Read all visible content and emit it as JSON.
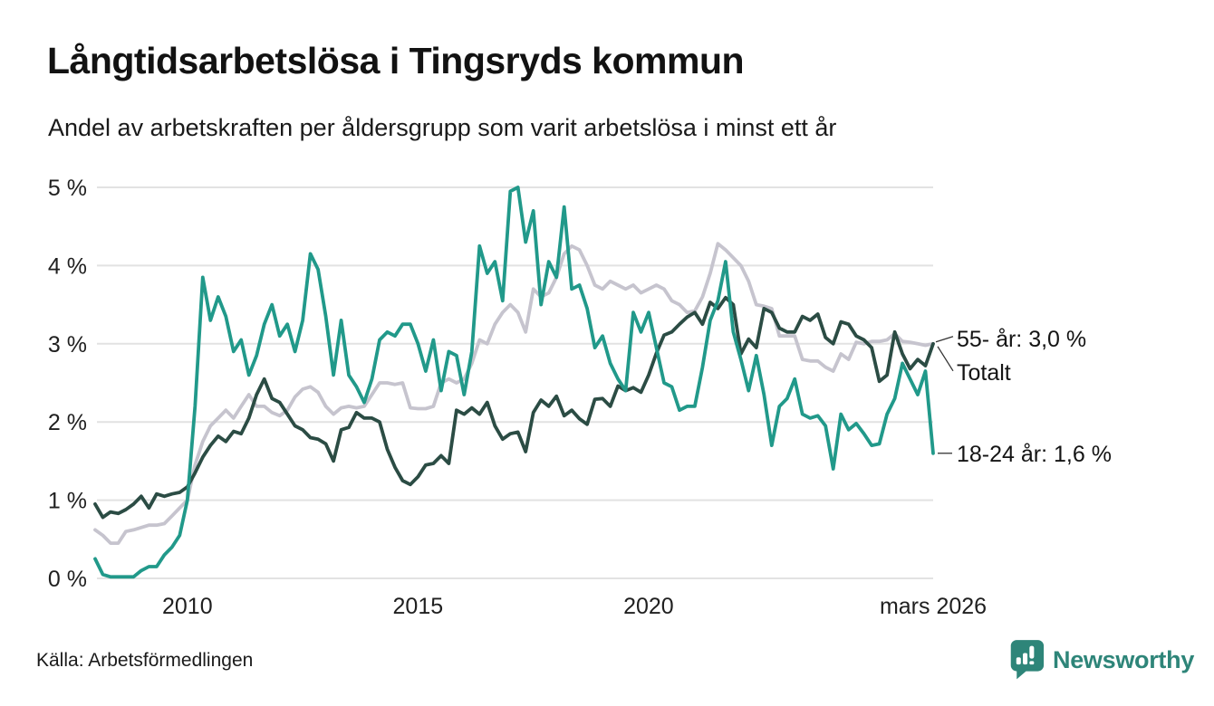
{
  "header": {
    "title": "Långtidsarbetslösa i Tingsryds kommun",
    "subtitle": "Andel av arbetskraften per åldersgrupp som varit arbetslösa i minst ett år"
  },
  "footer": {
    "source": "Källa: Arbetsförmedlingen",
    "brand": "Newsworthy",
    "brand_color": "#2e8579"
  },
  "colors": {
    "grid": "#e2e2e2",
    "axis_text": "#1f1f1f",
    "annotation_text": "#141414",
    "connector": "#333333"
  },
  "chart_data": {
    "type": "line",
    "title": "Långtidsarbetslösa i Tingsryds kommun",
    "subtitle": "Andel av arbetskraften per åldersgrupp som varit arbetslösa i minst ett år",
    "ylabel": "",
    "xlabel": "",
    "ylim": [
      0,
      5
    ],
    "grid": "horizontal",
    "legend_position": "right-end-labels",
    "x_min_year": 2008,
    "x_max_year": 2026.17,
    "points_per_year": 6,
    "y_ticks": [
      {
        "value": 0,
        "label": "0 %"
      },
      {
        "value": 1,
        "label": "1 %"
      },
      {
        "value": 2,
        "label": "2 %"
      },
      {
        "value": 3,
        "label": "3 %"
      },
      {
        "value": 4,
        "label": "4 %"
      },
      {
        "value": 5,
        "label": "5 %"
      }
    ],
    "x_ticks": [
      {
        "year": 2010,
        "label": "2010"
      },
      {
        "year": 2015,
        "label": "2015"
      },
      {
        "year": 2020,
        "label": "2020"
      },
      {
        "year": 2026.17,
        "label": "mars 2026"
      }
    ],
    "series": [
      {
        "name": "Totalt",
        "color": "#c6c4ce",
        "end_value_label": "Totalt",
        "values": [
          0.62,
          0.55,
          0.45,
          0.45,
          0.6,
          0.62,
          0.65,
          0.68,
          0.68,
          0.7,
          0.8,
          0.9,
          1.0,
          1.45,
          1.75,
          1.95,
          2.05,
          2.15,
          2.05,
          2.2,
          2.35,
          2.2,
          2.2,
          2.12,
          2.08,
          2.15,
          2.32,
          2.42,
          2.45,
          2.38,
          2.2,
          2.1,
          2.18,
          2.2,
          2.18,
          2.2,
          2.35,
          2.5,
          2.5,
          2.48,
          2.5,
          2.18,
          2.17,
          2.17,
          2.2,
          2.5,
          2.55,
          2.5,
          2.55,
          2.75,
          3.05,
          3.0,
          3.25,
          3.4,
          3.5,
          3.4,
          3.15,
          3.7,
          3.6,
          3.65,
          3.85,
          4.15,
          4.25,
          4.2,
          4.0,
          3.75,
          3.7,
          3.8,
          3.75,
          3.7,
          3.75,
          3.65,
          3.7,
          3.75,
          3.7,
          3.55,
          3.5,
          3.4,
          3.42,
          3.6,
          3.9,
          4.28,
          4.2,
          4.1,
          4.0,
          3.8,
          3.5,
          3.48,
          3.45,
          3.1,
          3.1,
          3.1,
          2.8,
          2.78,
          2.78,
          2.7,
          2.65,
          2.87,
          2.8,
          3.02,
          3.0,
          3.03,
          3.03,
          3.05,
          3.13,
          3.03,
          3.02,
          3.0,
          2.98,
          3.0
        ]
      },
      {
        "name": "55- år",
        "color": "#2b4c44",
        "end_value_label": "55- år: 3,0 %",
        "values": [
          0.95,
          0.78,
          0.85,
          0.83,
          0.88,
          0.95,
          1.05,
          0.9,
          1.08,
          1.05,
          1.08,
          1.1,
          1.17,
          1.35,
          1.55,
          1.7,
          1.82,
          1.75,
          1.88,
          1.85,
          2.05,
          2.35,
          2.55,
          2.3,
          2.25,
          2.1,
          1.95,
          1.9,
          1.8,
          1.78,
          1.72,
          1.5,
          1.9,
          1.93,
          2.12,
          2.05,
          2.05,
          2.0,
          1.65,
          1.42,
          1.25,
          1.2,
          1.3,
          1.45,
          1.47,
          1.57,
          1.47,
          2.15,
          2.1,
          2.18,
          2.1,
          2.25,
          1.95,
          1.78,
          1.85,
          1.87,
          1.62,
          2.12,
          2.28,
          2.2,
          2.33,
          2.08,
          2.15,
          2.04,
          1.97,
          2.29,
          2.3,
          2.2,
          2.46,
          2.4,
          2.44,
          2.38,
          2.6,
          2.88,
          3.11,
          3.15,
          3.25,
          3.34,
          3.4,
          3.25,
          3.53,
          3.45,
          3.59,
          3.5,
          2.87,
          3.06,
          2.95,
          3.45,
          3.4,
          3.2,
          3.15,
          3.15,
          3.35,
          3.3,
          3.38,
          3.08,
          3.0,
          3.28,
          3.25,
          3.1,
          3.05,
          2.95,
          2.52,
          2.6,
          3.15,
          2.87,
          2.68,
          2.8,
          2.72,
          3.0
        ]
      },
      {
        "name": "18-24 år",
        "color": "#21998a",
        "end_value_label": "18-24 år: 1,6 %",
        "values": [
          0.25,
          0.05,
          0.02,
          0.02,
          0.02,
          0.02,
          0.1,
          0.15,
          0.15,
          0.3,
          0.4,
          0.55,
          1.0,
          2.2,
          3.85,
          3.3,
          3.6,
          3.35,
          2.9,
          3.05,
          2.6,
          2.85,
          3.25,
          3.5,
          3.1,
          3.25,
          2.9,
          3.3,
          4.15,
          3.95,
          3.35,
          2.6,
          3.3,
          2.6,
          2.45,
          2.25,
          2.55,
          3.05,
          3.15,
          3.1,
          3.25,
          3.25,
          3.0,
          2.65,
          3.05,
          2.4,
          2.9,
          2.85,
          2.35,
          2.9,
          4.25,
          3.9,
          4.05,
          3.55,
          4.95,
          5.0,
          4.3,
          4.7,
          3.5,
          4.05,
          3.85,
          4.75,
          3.7,
          3.75,
          3.45,
          2.95,
          3.1,
          2.75,
          2.55,
          2.4,
          3.4,
          3.15,
          3.4,
          2.95,
          2.5,
          2.45,
          2.15,
          2.2,
          2.2,
          2.7,
          3.3,
          3.55,
          4.05,
          3.15,
          2.8,
          2.4,
          2.85,
          2.35,
          1.7,
          2.2,
          2.3,
          2.55,
          2.1,
          2.05,
          2.08,
          1.95,
          1.4,
          2.1,
          1.9,
          1.98,
          1.85,
          1.7,
          1.72,
          2.1,
          2.3,
          2.75,
          2.55,
          2.35,
          2.65,
          1.6
        ]
      }
    ],
    "end_labels": [
      {
        "series": "55- år",
        "text": "55- år: 3,0 %"
      },
      {
        "series": "Totalt",
        "text": "Totalt"
      },
      {
        "series": "18-24 år",
        "text": "18-24 år: 1,6 %"
      }
    ]
  }
}
